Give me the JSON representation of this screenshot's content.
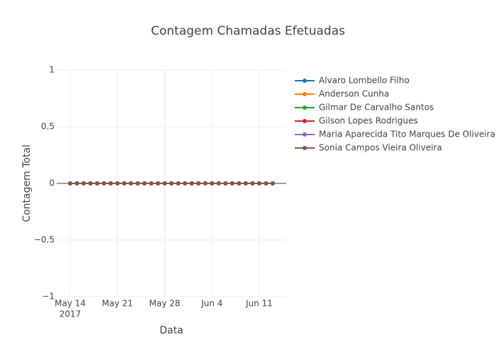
{
  "chart_data": {
    "type": "line",
    "title": "Contagem Chamadas Efetuadas",
    "x_label": "Data",
    "y_label": "Contagem Total",
    "x": [
      "2017-05-14",
      "2017-05-15",
      "2017-05-16",
      "2017-05-17",
      "2017-05-18",
      "2017-05-19",
      "2017-05-20",
      "2017-05-21",
      "2017-05-22",
      "2017-05-23",
      "2017-05-24",
      "2017-05-25",
      "2017-05-26",
      "2017-05-27",
      "2017-05-28",
      "2017-05-29",
      "2017-05-30",
      "2017-05-31",
      "2017-06-01",
      "2017-06-02",
      "2017-06-03",
      "2017-06-04",
      "2017-06-05",
      "2017-06-06",
      "2017-06-07",
      "2017-06-08",
      "2017-06-09",
      "2017-06-10",
      "2017-06-11",
      "2017-06-12",
      "2017-06-13"
    ],
    "series": [
      {
        "name": "Alvaro Lombello Filho",
        "color": "#1f77b4",
        "values": [
          0,
          0,
          0,
          0,
          0,
          0,
          0,
          0,
          0,
          0,
          0,
          0,
          0,
          0,
          0,
          0,
          0,
          0,
          0,
          0,
          0,
          0,
          0,
          0,
          0,
          0,
          0,
          0,
          0,
          0,
          0
        ]
      },
      {
        "name": "Anderson Cunha",
        "color": "#ff7f0e",
        "values": [
          0,
          0,
          0,
          0,
          0,
          0,
          0,
          0,
          0,
          0,
          0,
          0,
          0,
          0,
          0,
          0,
          0,
          0,
          0,
          0,
          0,
          0,
          0,
          0,
          0,
          0,
          0,
          0,
          0,
          0,
          0
        ]
      },
      {
        "name": "Gilmar De Carvalho Santos",
        "color": "#2ca02c",
        "values": [
          0,
          0,
          0,
          0,
          0,
          0,
          0,
          0,
          0,
          0,
          0,
          0,
          0,
          0,
          0,
          0,
          0,
          0,
          0,
          0,
          0,
          0,
          0,
          0,
          0,
          0,
          0,
          0,
          0,
          0,
          0
        ]
      },
      {
        "name": "Gilson Lopes Rodrigues",
        "color": "#d62728",
        "values": [
          0,
          0,
          0,
          0,
          0,
          0,
          0,
          0,
          0,
          0,
          0,
          0,
          0,
          0,
          0,
          0,
          0,
          0,
          0,
          0,
          0,
          0,
          0,
          0,
          0,
          0,
          0,
          0,
          0,
          0,
          0
        ]
      },
      {
        "name": "Maria Aparecida Tito Marques De Oliveira",
        "color": "#9467bd",
        "values": [
          0,
          0,
          0,
          0,
          0,
          0,
          0,
          0,
          0,
          0,
          0,
          0,
          0,
          0,
          0,
          0,
          0,
          0,
          0,
          0,
          0,
          0,
          0,
          0,
          0,
          0,
          0,
          0,
          0,
          0,
          0
        ]
      },
      {
        "name": "Sonia Campos Vieira Oliveira",
        "color": "#8c564b",
        "values": [
          0,
          0,
          0,
          0,
          0,
          0,
          0,
          0,
          0,
          0,
          0,
          0,
          0,
          0,
          0,
          0,
          0,
          0,
          0,
          0,
          0,
          0,
          0,
          0,
          0,
          0,
          0,
          0,
          0,
          0,
          0
        ]
      }
    ],
    "xlim": [
      "2017-05-12",
      "2017-06-15"
    ],
    "xticks": [
      {
        "value": "2017-05-14",
        "label": "May 14"
      },
      {
        "value": "2017-05-21",
        "label": "May 21"
      },
      {
        "value": "2017-05-28",
        "label": "May 28"
      },
      {
        "value": "2017-06-04",
        "label": "Jun 4"
      },
      {
        "value": "2017-06-11",
        "label": "Jun 11"
      }
    ],
    "x_year_label": "2017",
    "ylim": [
      -1,
      1
    ],
    "yticks": [
      {
        "value": -1,
        "label": "−1"
      },
      {
        "value": -0.5,
        "label": "−0.5"
      },
      0,
      0.5,
      1
    ],
    "grid": true,
    "legend": "right"
  }
}
